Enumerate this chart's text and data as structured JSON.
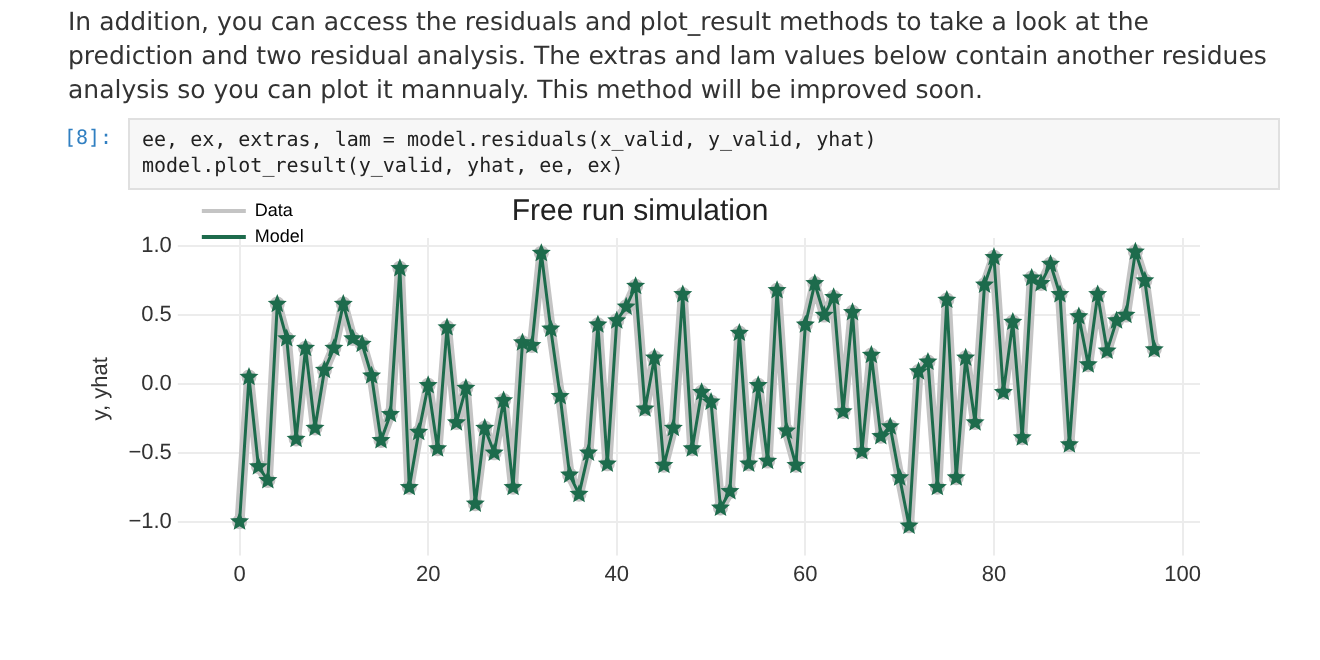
{
  "chart_data": {
    "type": "line",
    "title": "Free run simulation",
    "ylabel": "y, yhat",
    "annotations": [
      "In addition, you can access the residuals and plot_result methods to take a look at the prediction and two residual analysis. The extras and lam values below contain another residues analysis so you can plot it mannualy. This method will be improved soon.",
      "[8]:",
      "ee, ex, extras, lam = model.residuals(x_valid, y_valid, yhat)",
      "model.plot_result(y_valid, yhat, ee, ex)"
    ],
    "x": [
      0,
      1,
      2,
      3,
      4,
      5,
      6,
      7,
      8,
      9,
      10,
      11,
      12,
      13,
      14,
      15,
      16,
      17,
      18,
      19,
      20,
      21,
      22,
      23,
      24,
      25,
      26,
      27,
      28,
      29,
      30,
      31,
      32,
      33,
      34,
      35,
      36,
      37,
      38,
      39,
      40,
      41,
      42,
      43,
      44,
      45,
      46,
      47,
      48,
      49,
      50,
      51,
      52,
      53,
      54,
      55,
      56,
      57,
      58,
      59,
      60,
      61,
      62,
      63,
      64,
      65,
      66,
      67,
      68,
      69,
      70,
      71,
      72,
      73,
      74,
      75,
      76,
      77,
      78,
      79,
      80,
      81,
      82,
      83,
      84,
      85,
      86,
      87,
      88,
      89,
      90,
      91,
      92,
      93,
      94,
      95,
      96,
      97
    ],
    "series": [
      {
        "name": "Data",
        "color": "#c4c4c4",
        "marker": "circle",
        "values": [
          -1.0,
          0.05,
          -0.6,
          -0.7,
          0.58,
          0.33,
          -0.4,
          0.26,
          -0.32,
          0.1,
          0.26,
          0.58,
          0.33,
          0.29,
          0.06,
          -0.41,
          -0.22,
          0.84,
          -0.75,
          -0.35,
          -0.01,
          -0.47,
          0.41,
          -0.28,
          -0.03,
          -0.87,
          -0.32,
          -0.5,
          -0.12,
          -0.75,
          0.3,
          0.28,
          0.95,
          0.4,
          -0.09,
          -0.66,
          -0.8,
          -0.5,
          0.43,
          -0.58,
          0.46,
          0.56,
          0.71,
          -0.18,
          0.19,
          -0.59,
          -0.32,
          0.65,
          -0.47,
          -0.06,
          -0.13,
          -0.9,
          -0.78,
          0.37,
          -0.58,
          -0.01,
          -0.56,
          0.68,
          -0.34,
          -0.59,
          0.43,
          0.73,
          0.5,
          0.63,
          -0.2,
          0.52,
          -0.49,
          0.21,
          -0.38,
          -0.31,
          -0.68,
          -1.03,
          0.09,
          0.16,
          -0.75,
          0.61,
          -0.68,
          0.19,
          -0.28,
          0.72,
          0.92,
          -0.06,
          0.45,
          -0.39,
          0.77,
          0.73,
          0.87,
          0.65,
          -0.44,
          0.49,
          0.14,
          0.65,
          0.24,
          0.46,
          0.5,
          0.96,
          0.75,
          0.25
        ]
      },
      {
        "name": "Model",
        "color": "#1d6b4c",
        "marker": "star",
        "values": [
          -1.0,
          0.05,
          -0.6,
          -0.7,
          0.58,
          0.33,
          -0.4,
          0.26,
          -0.32,
          0.1,
          0.26,
          0.58,
          0.33,
          0.29,
          0.06,
          -0.41,
          -0.22,
          0.84,
          -0.75,
          -0.35,
          -0.01,
          -0.47,
          0.41,
          -0.28,
          -0.03,
          -0.87,
          -0.32,
          -0.5,
          -0.12,
          -0.75,
          0.3,
          0.28,
          0.95,
          0.4,
          -0.09,
          -0.66,
          -0.8,
          -0.5,
          0.43,
          -0.58,
          0.46,
          0.56,
          0.71,
          -0.18,
          0.19,
          -0.59,
          -0.32,
          0.65,
          -0.47,
          -0.06,
          -0.13,
          -0.9,
          -0.78,
          0.37,
          -0.58,
          -0.01,
          -0.56,
          0.68,
          -0.34,
          -0.59,
          0.43,
          0.73,
          0.5,
          0.63,
          -0.2,
          0.52,
          -0.49,
          0.21,
          -0.38,
          -0.31,
          -0.68,
          -1.03,
          0.09,
          0.16,
          -0.75,
          0.61,
          -0.68,
          0.19,
          -0.28,
          0.72,
          0.92,
          -0.06,
          0.45,
          -0.39,
          0.77,
          0.73,
          0.87,
          0.65,
          -0.44,
          0.49,
          0.14,
          0.65,
          0.24,
          0.46,
          0.5,
          0.96,
          0.75,
          0.25
        ]
      }
    ],
    "xlim": [
      -4.85,
      101.85
    ],
    "xticks": [
      0,
      20,
      40,
      60,
      80,
      100
    ],
    "ylim": [
      -1.13,
      1.06
    ],
    "yticks": [
      {
        "value": -1,
        "label": "−1.0"
      },
      {
        "value": -0.5,
        "label": "−0.5"
      },
      {
        "value": 0,
        "label": "0.0"
      },
      {
        "value": 0.5,
        "label": "0.5"
      },
      {
        "value": 1,
        "label": "1.0"
      }
    ],
    "grid": true,
    "legend": "top left",
    "line_style": "solid"
  }
}
